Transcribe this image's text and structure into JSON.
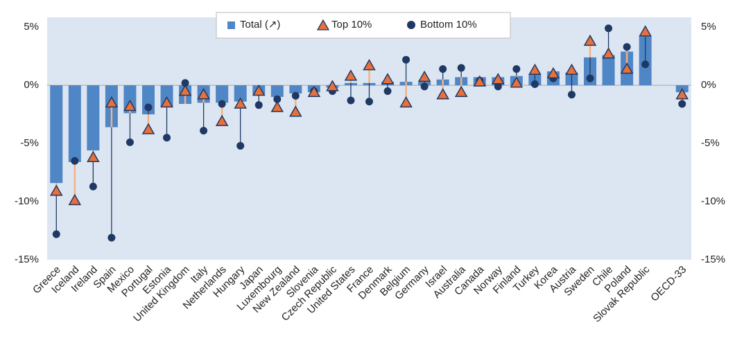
{
  "chart_data": {
    "type": "bar-range",
    "categories": [
      "Greece",
      "Iceland",
      "Ireland",
      "Spain",
      "Mexico",
      "Portugal",
      "Estonia",
      "United Kingdom",
      "Italy",
      "Netherlands",
      "Hungary",
      "Japan",
      "Luxembourg",
      "New Zealand",
      "Slovenia",
      "Czech Republic",
      "United States",
      "France",
      "Denmark",
      "Belgium",
      "Germany",
      "Israel",
      "Australia",
      "Canada",
      "Norway",
      "Finland",
      "Turkey",
      "Korea",
      "Austria",
      "Sweden",
      "Chile",
      "Poland",
      "Slovak Republic",
      null,
      "OECD-33"
    ],
    "series": [
      {
        "name": "Total (↗)",
        "color": "#4f86c6",
        "values": [
          -8.4,
          -6.6,
          -5.6,
          -3.6,
          -2.4,
          -2.5,
          -1.9,
          -1.6,
          -1.5,
          -1.5,
          -1.4,
          -0.8,
          -1.0,
          -0.7,
          -0.6,
          -0.2,
          0.2,
          0.2,
          0.3,
          0.3,
          0.3,
          0.5,
          0.7,
          0.7,
          0.7,
          0.8,
          0.9,
          1.2,
          1.1,
          2.4,
          2.6,
          2.9,
          4.2,
          null,
          -0.6
        ]
      },
      {
        "name": "Top 10%",
        "color": "#e8703a",
        "values": [
          -9.1,
          -9.9,
          -6.2,
          -1.5,
          -1.8,
          -3.8,
          -1.5,
          -0.5,
          -0.8,
          -3.1,
          -1.6,
          -0.5,
          -1.9,
          -2.3,
          -0.6,
          -0.1,
          0.8,
          1.7,
          0.5,
          -1.5,
          0.7,
          -0.8,
          -0.6,
          0.3,
          0.5,
          0.2,
          1.3,
          1.0,
          1.3,
          3.8,
          2.7,
          1.4,
          4.6,
          null,
          -0.8
        ]
      },
      {
        "name": "Bottom 10%",
        "color": "#1f3864",
        "values": [
          -12.8,
          -6.5,
          -8.7,
          -13.1,
          -4.9,
          -1.9,
          -4.5,
          0.2,
          -3.9,
          -1.6,
          -5.2,
          -1.7,
          -1.2,
          -0.9,
          -0.5,
          -0.5,
          -1.3,
          -1.4,
          -0.5,
          2.2,
          -0.1,
          1.4,
          1.5,
          0.4,
          -0.1,
          1.4,
          0.1,
          0.6,
          -0.8,
          0.6,
          4.9,
          3.3,
          1.8,
          null,
          -1.6
        ]
      }
    ],
    "ylim": [
      -15,
      6.5
    ],
    "yticks": [
      {
        "value": 5,
        "label": "5%"
      },
      {
        "value": 0,
        "label": "0%"
      },
      {
        "value": -5,
        "label": "-5%"
      },
      {
        "value": -10,
        "label": "-10%"
      },
      {
        "value": -15,
        "label": "-15%"
      }
    ],
    "background": "#dce6f2"
  }
}
